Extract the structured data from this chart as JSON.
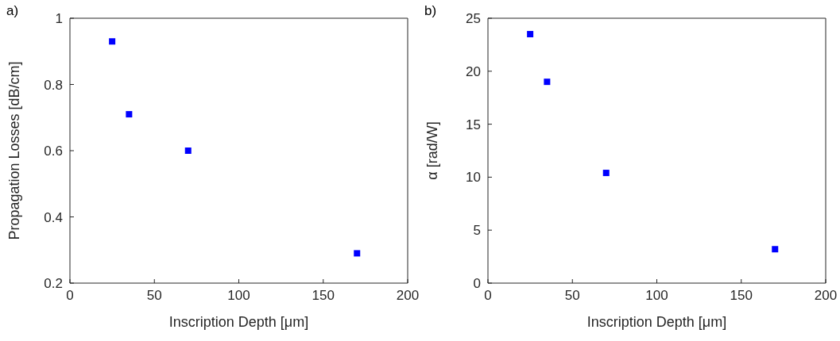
{
  "chart_data": [
    {
      "type": "scatter",
      "annotations": [
        "a)"
      ],
      "xlabel": "Inscription Depth [μm]",
      "ylabel": "Propagation Losses [dB/cm]",
      "x": [
        25,
        35,
        70,
        170
      ],
      "series": [
        {
          "color": "#0000ff",
          "values": [
            0.93,
            0.71,
            0.6,
            0.29
          ]
        }
      ],
      "xlim": [
        0,
        200
      ],
      "xticks": [
        0,
        50,
        100,
        150,
        200
      ],
      "ylim": [
        0.2,
        1
      ],
      "yticks": [
        0.2,
        0.4,
        0.6,
        0.8,
        1
      ],
      "marker": "square",
      "grid": false,
      "legend": false
    },
    {
      "type": "scatter",
      "annotations": [
        "b)"
      ],
      "xlabel": "Inscription Depth [μm]",
      "ylabel": "α [rad/W]",
      "x": [
        25,
        35,
        70,
        170
      ],
      "series": [
        {
          "color": "#0000ff",
          "values": [
            23.5,
            19,
            10.4,
            3.2
          ]
        }
      ],
      "xlim": [
        0,
        200
      ],
      "xticks": [
        0,
        50,
        100,
        150,
        200
      ],
      "ylim": [
        0,
        25
      ],
      "yticks": [
        0,
        5,
        10,
        15,
        20,
        25
      ],
      "marker": "square",
      "grid": false,
      "legend": false
    }
  ]
}
